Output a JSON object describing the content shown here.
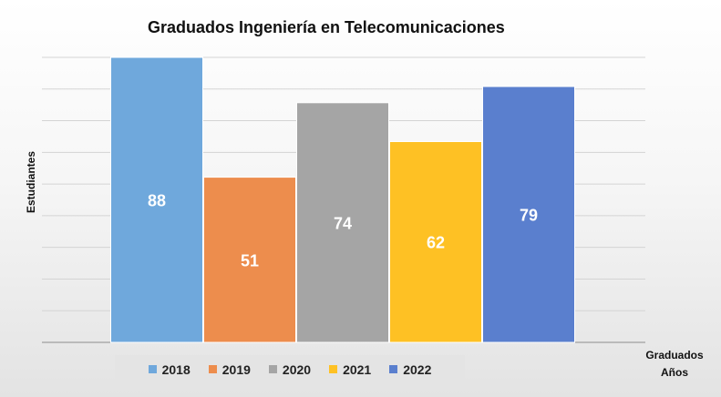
{
  "chart_data": {
    "type": "bar",
    "title": "Graduados Ingeniería en Telecomunicaciones",
    "ylabel": "Estudiantes",
    "xlabel": [
      "Graduados",
      "Años"
    ],
    "ylim": [
      0,
      88
    ],
    "grid": true,
    "legend_position": "bottom",
    "series": [
      {
        "name": "2018",
        "value": 88,
        "color": "#6fa8dc"
      },
      {
        "name": "2019",
        "value": 51,
        "color": "#ed8d4d"
      },
      {
        "name": "2020",
        "value": 74,
        "color": "#a5a5a5"
      },
      {
        "name": "2021",
        "value": 62,
        "color": "#fec124"
      },
      {
        "name": "2022",
        "value": 79,
        "color": "#5a7fce"
      }
    ]
  }
}
